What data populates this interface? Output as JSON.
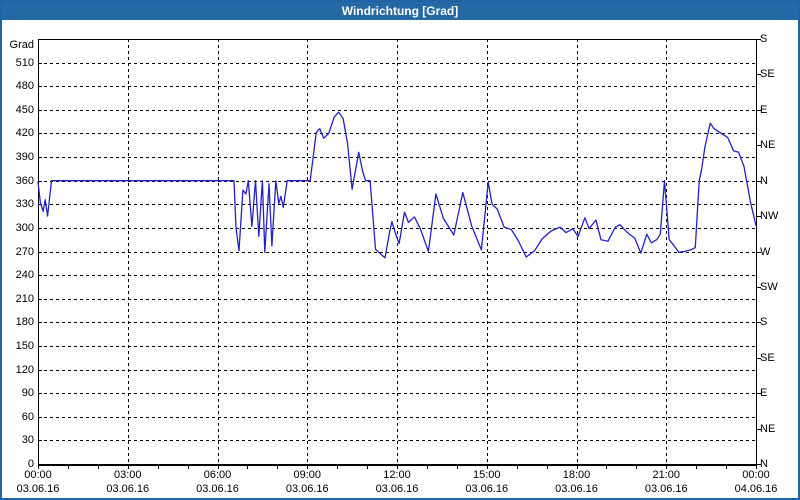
{
  "window": {
    "title": "Windrichtung [Grad]"
  },
  "colors": {
    "titlebar_bg": "#2569a4",
    "frame_border": "#2164a6",
    "line": "#2222c8",
    "grid": "#000000",
    "plot_background": "#ffffff",
    "label_text": "#000000"
  },
  "chart_data": {
    "type": "line",
    "title": "Windrichtung [Grad]",
    "ylabel_left": "Grad",
    "ylim": [
      0,
      540
    ],
    "y_left_tick_step": 30,
    "y_left_ticks": [
      0,
      30,
      60,
      90,
      120,
      150,
      180,
      210,
      240,
      270,
      300,
      330,
      360,
      390,
      420,
      450,
      480,
      510
    ],
    "y_right_ticks": [
      {
        "deg": 0,
        "label": "N"
      },
      {
        "deg": 45,
        "label": "NE"
      },
      {
        "deg": 90,
        "label": "E"
      },
      {
        "deg": 135,
        "label": "SE"
      },
      {
        "deg": 180,
        "label": "S"
      },
      {
        "deg": 225,
        "label": "SW"
      },
      {
        "deg": 270,
        "label": "W"
      },
      {
        "deg": 315,
        "label": "NW"
      },
      {
        "deg": 360,
        "label": "N"
      },
      {
        "deg": 405,
        "label": "NE"
      },
      {
        "deg": 450,
        "label": "E"
      },
      {
        "deg": 495,
        "label": "SE"
      },
      {
        "deg": 540,
        "label": "S"
      }
    ],
    "xlim_hours": [
      0,
      24
    ],
    "x_ticks": [
      {
        "hour": 0,
        "time": "00:00",
        "date": "03.06.16"
      },
      {
        "hour": 3,
        "time": "03:00",
        "date": "03.06.16"
      },
      {
        "hour": 6,
        "time": "06:00",
        "date": "03.06.16"
      },
      {
        "hour": 9,
        "time": "09:00",
        "date": "03.06.16"
      },
      {
        "hour": 12,
        "time": "12:00",
        "date": "03.06.16"
      },
      {
        "hour": 15,
        "time": "15:00",
        "date": "03.06.16"
      },
      {
        "hour": 18,
        "time": "18:00",
        "date": "03.06.16"
      },
      {
        "hour": 21,
        "time": "21:00",
        "date": "03.06.16"
      },
      {
        "hour": 24,
        "time": "00:00",
        "date": "04.06.16"
      }
    ],
    "grid": true,
    "legend": "none",
    "series": [
      {
        "name": "Windrichtung",
        "color": "#2222c8",
        "points": [
          [
            0.0,
            358
          ],
          [
            0.08,
            332
          ],
          [
            0.17,
            321
          ],
          [
            0.24,
            336
          ],
          [
            0.32,
            315
          ],
          [
            0.45,
            360
          ],
          [
            6.55,
            360
          ],
          [
            6.62,
            300
          ],
          [
            6.72,
            271
          ],
          [
            6.85,
            348
          ],
          [
            6.95,
            343
          ],
          [
            7.03,
            360
          ],
          [
            7.15,
            302
          ],
          [
            7.27,
            360
          ],
          [
            7.38,
            289
          ],
          [
            7.5,
            360
          ],
          [
            7.58,
            269
          ],
          [
            7.72,
            356
          ],
          [
            7.82,
            277
          ],
          [
            7.95,
            360
          ],
          [
            8.05,
            331
          ],
          [
            8.12,
            340
          ],
          [
            8.2,
            326
          ],
          [
            8.33,
            360
          ],
          [
            9.1,
            360
          ],
          [
            9.3,
            421
          ],
          [
            9.42,
            426
          ],
          [
            9.55,
            414
          ],
          [
            9.72,
            420
          ],
          [
            9.9,
            441
          ],
          [
            10.05,
            447
          ],
          [
            10.2,
            439
          ],
          [
            10.35,
            407
          ],
          [
            10.5,
            349
          ],
          [
            10.72,
            396
          ],
          [
            10.85,
            372
          ],
          [
            10.95,
            360
          ],
          [
            11.1,
            360
          ],
          [
            11.28,
            273
          ],
          [
            11.45,
            267
          ],
          [
            11.6,
            262
          ],
          [
            11.75,
            294
          ],
          [
            11.83,
            308
          ],
          [
            11.95,
            293
          ],
          [
            12.07,
            280
          ],
          [
            12.25,
            320
          ],
          [
            12.38,
            307
          ],
          [
            12.58,
            314
          ],
          [
            12.78,
            299
          ],
          [
            13.05,
            270
          ],
          [
            13.3,
            343
          ],
          [
            13.55,
            312
          ],
          [
            13.9,
            291
          ],
          [
            14.2,
            345
          ],
          [
            14.5,
            302
          ],
          [
            14.82,
            272
          ],
          [
            15.05,
            358
          ],
          [
            15.18,
            330
          ],
          [
            15.35,
            324
          ],
          [
            15.58,
            301
          ],
          [
            15.82,
            298
          ],
          [
            16.05,
            284
          ],
          [
            16.32,
            263
          ],
          [
            16.6,
            271
          ],
          [
            16.85,
            286
          ],
          [
            17.15,
            296
          ],
          [
            17.45,
            301
          ],
          [
            17.65,
            294
          ],
          [
            17.88,
            299
          ],
          [
            18.05,
            289
          ],
          [
            18.28,
            313
          ],
          [
            18.42,
            299
          ],
          [
            18.65,
            310
          ],
          [
            18.82,
            285
          ],
          [
            19.05,
            283
          ],
          [
            19.3,
            301
          ],
          [
            19.45,
            304
          ],
          [
            19.7,
            294
          ],
          [
            19.95,
            287
          ],
          [
            20.15,
            268
          ],
          [
            20.35,
            292
          ],
          [
            20.5,
            281
          ],
          [
            20.68,
            285
          ],
          [
            20.8,
            292
          ],
          [
            20.94,
            360
          ],
          [
            21.1,
            285
          ],
          [
            21.25,
            278
          ],
          [
            21.42,
            269
          ],
          [
            21.6,
            270
          ],
          [
            21.82,
            272
          ],
          [
            21.97,
            275
          ],
          [
            22.1,
            360
          ],
          [
            22.17,
            372
          ],
          [
            22.3,
            404
          ],
          [
            22.47,
            433
          ],
          [
            22.6,
            426
          ],
          [
            22.8,
            421
          ],
          [
            23.05,
            415
          ],
          [
            23.25,
            398
          ],
          [
            23.42,
            396
          ],
          [
            23.6,
            378
          ],
          [
            23.82,
            332
          ],
          [
            24.0,
            303
          ]
        ]
      }
    ]
  }
}
